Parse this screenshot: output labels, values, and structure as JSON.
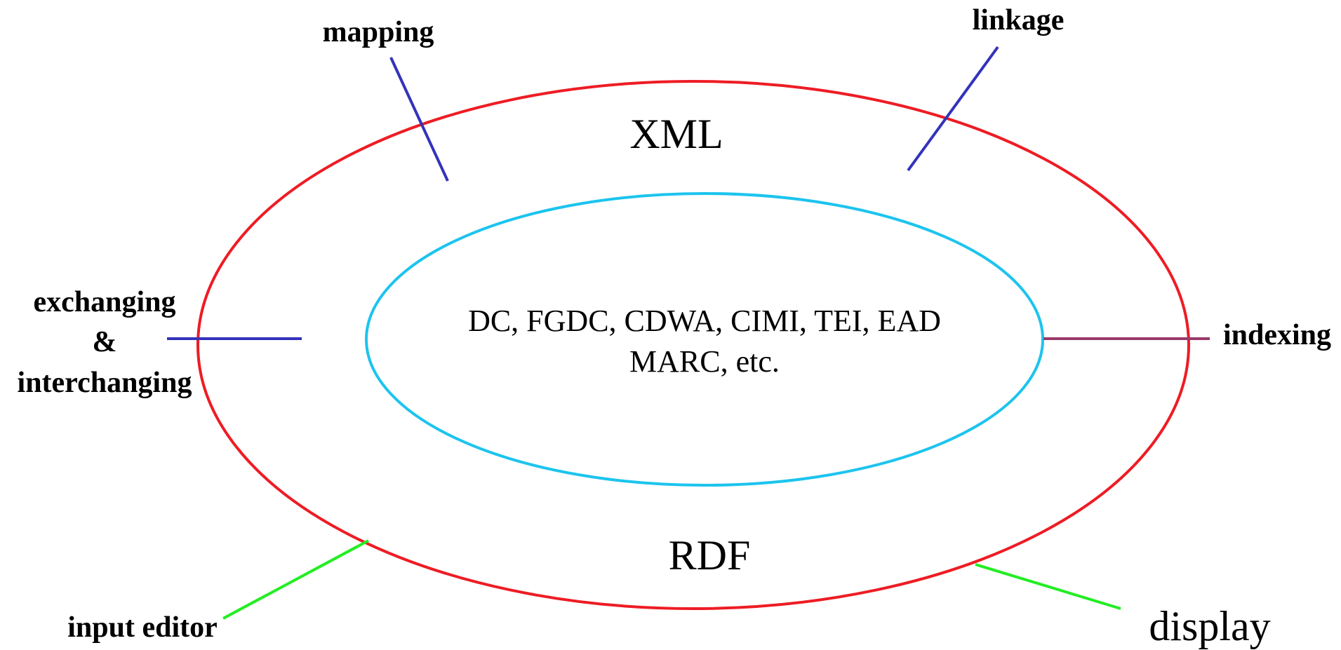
{
  "outer_ring": {
    "top_label": "XML",
    "bottom_label": "RDF",
    "color": "#ee1c24"
  },
  "inner_ring": {
    "line1": "DC, FGDC, CDWA, CIMI, TEI, EAD",
    "line2": "MARC, etc.",
    "color": "#1cc4ee"
  },
  "functions": {
    "mapping": "mapping",
    "linkage": "linkage",
    "exchanging": {
      "line1": "exchanging",
      "line2": "&",
      "line3": "interchanging"
    },
    "indexing": "indexing",
    "input_editor": "input editor",
    "display": "display"
  },
  "connector_colors": {
    "blue": "#3333bb",
    "purple": "#9b3a6a",
    "green": "#22ee22"
  }
}
